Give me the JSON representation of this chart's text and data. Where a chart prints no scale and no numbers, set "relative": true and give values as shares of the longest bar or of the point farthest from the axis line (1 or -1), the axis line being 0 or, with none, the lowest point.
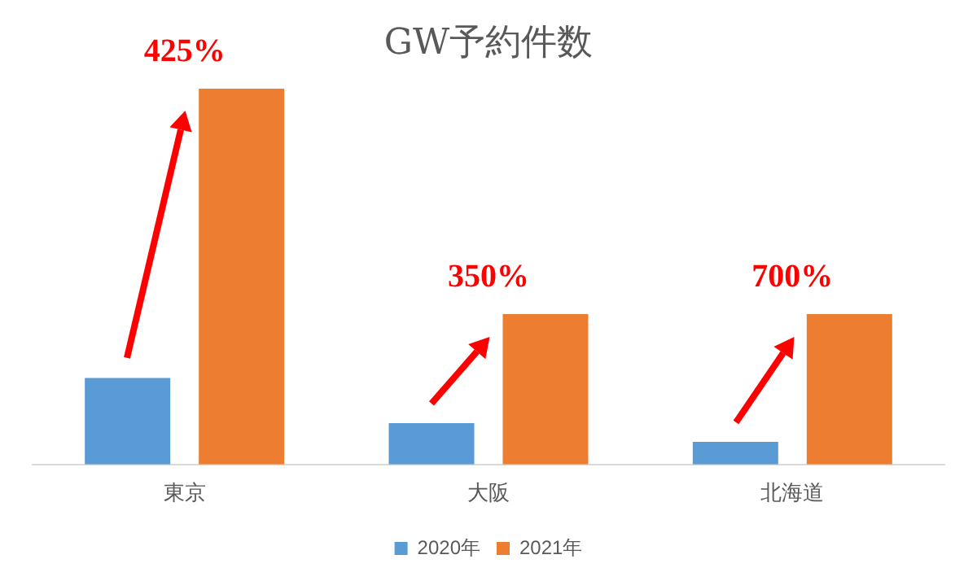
{
  "chart_data": {
    "type": "bar",
    "title": "GW予約件数",
    "categories": [
      "東京",
      "大阪",
      "北海道"
    ],
    "relative": true,
    "grid": false,
    "legend": "bottom",
    "series": [
      {
        "name": "2020年",
        "color": "#5b9bd5",
        "values": [
          0.23,
          0.11,
          0.06
        ]
      },
      {
        "name": "2021年",
        "color": "#ed7d31",
        "values": [
          1,
          0.4,
          0.4
        ]
      }
    ],
    "annotations": [
      "425%",
      "350%",
      "700%"
    ]
  }
}
